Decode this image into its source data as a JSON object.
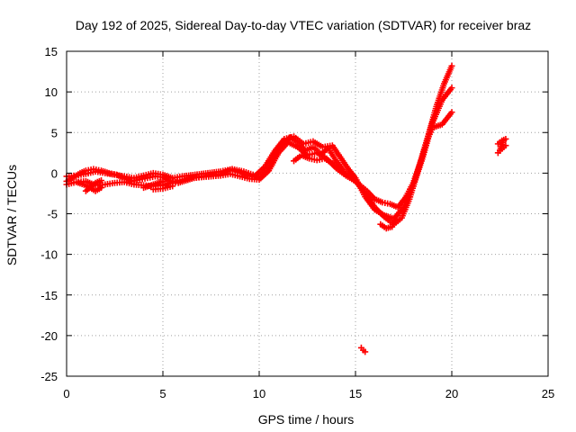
{
  "chart_data": {
    "type": "scatter",
    "title": "Day 192 of 2025, Sidereal Day-to-day VTEC variation (SDTVAR) for receiver braz",
    "xlabel": "GPS time / hours",
    "ylabel": "SDTVAR / TECUs",
    "xlim": [
      0,
      25
    ],
    "ylim": [
      -25,
      15
    ],
    "xticks": [
      0,
      5,
      10,
      15,
      20,
      25
    ],
    "yticks": [
      -25,
      -20,
      -15,
      -10,
      -5,
      0,
      5,
      10,
      15
    ],
    "grid": true,
    "marker": "plus",
    "color": "#ff0000",
    "series": [
      {
        "name": "SDTVAR",
        "tracks": [
          [
            [
              0.0,
              -1.0
            ],
            [
              0.3,
              -0.6
            ],
            [
              0.7,
              0.0
            ],
            [
              1.0,
              0.3
            ],
            [
              1.4,
              0.5
            ],
            [
              1.8,
              0.3
            ],
            [
              2.2,
              0.0
            ],
            [
              2.6,
              -0.2
            ],
            [
              3.0,
              -0.6
            ],
            [
              3.4,
              -1.0
            ],
            [
              3.8,
              -0.8
            ],
            [
              4.2,
              -0.6
            ],
            [
              4.6,
              -0.4
            ],
            [
              5.0,
              -0.5
            ],
            [
              5.4,
              -1.0
            ],
            [
              5.8,
              -1.2
            ],
            [
              6.2,
              -0.9
            ],
            [
              6.6,
              -0.6
            ],
            [
              7.0,
              -0.4
            ],
            [
              7.5,
              -0.2
            ],
            [
              8.0,
              -0.1
            ],
            [
              8.5,
              0.4
            ],
            [
              9.0,
              0.1
            ],
            [
              9.5,
              -0.4
            ],
            [
              10.0,
              -0.6
            ],
            [
              10.4,
              0.5
            ],
            [
              10.8,
              2.0
            ],
            [
              11.2,
              3.5
            ],
            [
              11.6,
              4.4
            ],
            [
              12.0,
              3.8
            ],
            [
              12.4,
              2.8
            ],
            [
              12.8,
              3.2
            ],
            [
              13.2,
              2.4
            ],
            [
              13.6,
              3.0
            ],
            [
              14.0,
              1.5
            ],
            [
              14.4,
              0.2
            ],
            [
              14.8,
              -0.5
            ],
            [
              15.2,
              -1.4
            ],
            [
              15.6,
              -2.2
            ],
            [
              16.0,
              -3.2
            ],
            [
              16.4,
              -3.6
            ],
            [
              16.8,
              -3.8
            ],
            [
              17.2,
              -4.2
            ],
            [
              17.6,
              -3.0
            ],
            [
              18.0,
              -1.2
            ],
            [
              18.4,
              1.5
            ],
            [
              18.8,
              4.8
            ],
            [
              19.2,
              8.2
            ],
            [
              19.6,
              11.0
            ],
            [
              20.0,
              13.2
            ]
          ],
          [
            [
              0.0,
              -1.4
            ],
            [
              0.5,
              -1.1
            ],
            [
              1.0,
              -1.0
            ],
            [
              1.5,
              -1.5
            ],
            [
              2.0,
              -1.4
            ],
            [
              2.5,
              -1.2
            ],
            [
              3.0,
              -1.1
            ],
            [
              3.5,
              -1.4
            ],
            [
              4.0,
              -1.5
            ],
            [
              4.5,
              -1.6
            ],
            [
              5.0,
              -1.5
            ],
            [
              5.5,
              -1.1
            ],
            [
              6.0,
              -0.8
            ],
            [
              6.5,
              -0.6
            ],
            [
              7.0,
              -0.5
            ],
            [
              7.5,
              -0.4
            ],
            [
              8.0,
              -0.3
            ],
            [
              8.5,
              -0.1
            ],
            [
              9.0,
              -0.4
            ],
            [
              9.5,
              -0.7
            ],
            [
              10.0,
              -0.8
            ],
            [
              10.5,
              0.3
            ],
            [
              11.0,
              2.5
            ],
            [
              11.5,
              3.8
            ],
            [
              12.0,
              3.2
            ],
            [
              12.5,
              2.2
            ],
            [
              13.0,
              2.5
            ],
            [
              13.5,
              1.8
            ],
            [
              14.0,
              0.6
            ],
            [
              14.5,
              -0.3
            ],
            [
              15.0,
              -1.0
            ],
            [
              15.5,
              -2.4
            ],
            [
              16.0,
              -4.2
            ],
            [
              16.5,
              -5.4
            ],
            [
              17.0,
              -6.3
            ],
            [
              17.4,
              -5.5
            ],
            [
              17.8,
              -3.2
            ],
            [
              18.2,
              0.0
            ],
            [
              18.6,
              3.2
            ],
            [
              19.0,
              6.2
            ],
            [
              19.5,
              9.0
            ],
            [
              20.0,
              10.5
            ]
          ],
          [
            [
              0.0,
              -0.4
            ],
            [
              0.5,
              -0.3
            ],
            [
              1.0,
              -0.1
            ],
            [
              1.5,
              0.2
            ],
            [
              2.0,
              0.0
            ],
            [
              2.5,
              -0.2
            ],
            [
              3.0,
              -0.4
            ],
            [
              3.5,
              -0.6
            ],
            [
              4.0,
              -0.3
            ],
            [
              4.5,
              0.0
            ],
            [
              5.0,
              -0.2
            ],
            [
              5.5,
              -0.6
            ],
            [
              6.0,
              -0.4
            ],
            [
              7.0,
              -0.1
            ],
            [
              8.0,
              0.2
            ],
            [
              8.6,
              0.5
            ],
            [
              9.2,
              0.2
            ],
            [
              9.8,
              -0.3
            ],
            [
              10.3,
              0.8
            ],
            [
              10.8,
              2.7
            ],
            [
              11.3,
              4.2
            ],
            [
              11.8,
              4.5
            ],
            [
              12.3,
              3.6
            ],
            [
              12.8,
              3.9
            ],
            [
              13.3,
              3.2
            ],
            [
              13.8,
              3.4
            ],
            [
              14.2,
              2.0
            ],
            [
              14.6,
              0.6
            ],
            [
              15.0,
              -0.6
            ],
            [
              15.5,
              -2.9
            ],
            [
              16.0,
              -4.5
            ],
            [
              16.5,
              -5.2
            ],
            [
              17.0,
              -5.6
            ],
            [
              17.5,
              -4.2
            ],
            [
              18.0,
              -1.6
            ],
            [
              18.5,
              2.0
            ],
            [
              18.8,
              4.5
            ],
            [
              19.0,
              5.6
            ],
            [
              19.5,
              6.0
            ],
            [
              20.0,
              7.5
            ]
          ],
          [
            [
              0.5,
              -1.1
            ],
            [
              1.0,
              -1.5
            ],
            [
              1.5,
              -2.2
            ],
            [
              1.8,
              -1.8
            ]
          ],
          [
            [
              1.0,
              -2.2
            ],
            [
              1.5,
              -1.2
            ],
            [
              1.8,
              -0.9
            ]
          ],
          [
            [
              4.0,
              -1.8
            ],
            [
              4.5,
              -1.4
            ],
            [
              5.0,
              -1.0
            ]
          ],
          [
            [
              4.5,
              -2.0
            ],
            [
              5.0,
              -1.9
            ],
            [
              5.5,
              -1.6
            ]
          ],
          [
            [
              11.8,
              1.5
            ],
            [
              12.2,
              2.2
            ],
            [
              12.6,
              1.8
            ],
            [
              13.0,
              1.6
            ],
            [
              13.4,
              1.8
            ],
            [
              13.8,
              1.2
            ],
            [
              14.2,
              0.5
            ]
          ],
          [
            [
              16.3,
              -6.3
            ],
            [
              16.6,
              -6.8
            ],
            [
              16.9,
              -6.6
            ],
            [
              17.1,
              -5.8
            ]
          ],
          [
            [
              22.4,
              2.5
            ],
            [
              22.6,
              3.0
            ],
            [
              22.8,
              3.4
            ]
          ],
          [
            [
              22.4,
              3.6
            ],
            [
              22.6,
              4.0
            ],
            [
              22.8,
              4.2
            ]
          ],
          [
            [
              22.5,
              2.8
            ],
            [
              22.6,
              3.5
            ],
            [
              22.7,
              4.0
            ]
          ],
          [
            [
              15.3,
              -21.5
            ],
            [
              15.4,
              -21.8
            ],
            [
              15.5,
              -22.0
            ]
          ]
        ]
      }
    ]
  }
}
